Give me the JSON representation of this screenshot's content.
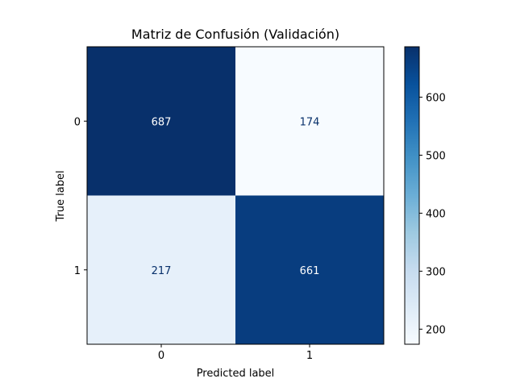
{
  "chart_data": {
    "type": "heatmap",
    "title": "Matriz de Confusión (Validación)",
    "xlabel": "Predicted label",
    "ylabel": "True label",
    "x_categories": [
      "0",
      "1"
    ],
    "y_categories": [
      "0",
      "1"
    ],
    "values": [
      [
        687,
        174
      ],
      [
        217,
        661
      ]
    ],
    "colormap": "Blues",
    "colorbar": {
      "vmin": 174,
      "vmax": 687,
      "ticks": [
        200,
        300,
        400,
        500,
        600
      ]
    },
    "grid": false
  }
}
